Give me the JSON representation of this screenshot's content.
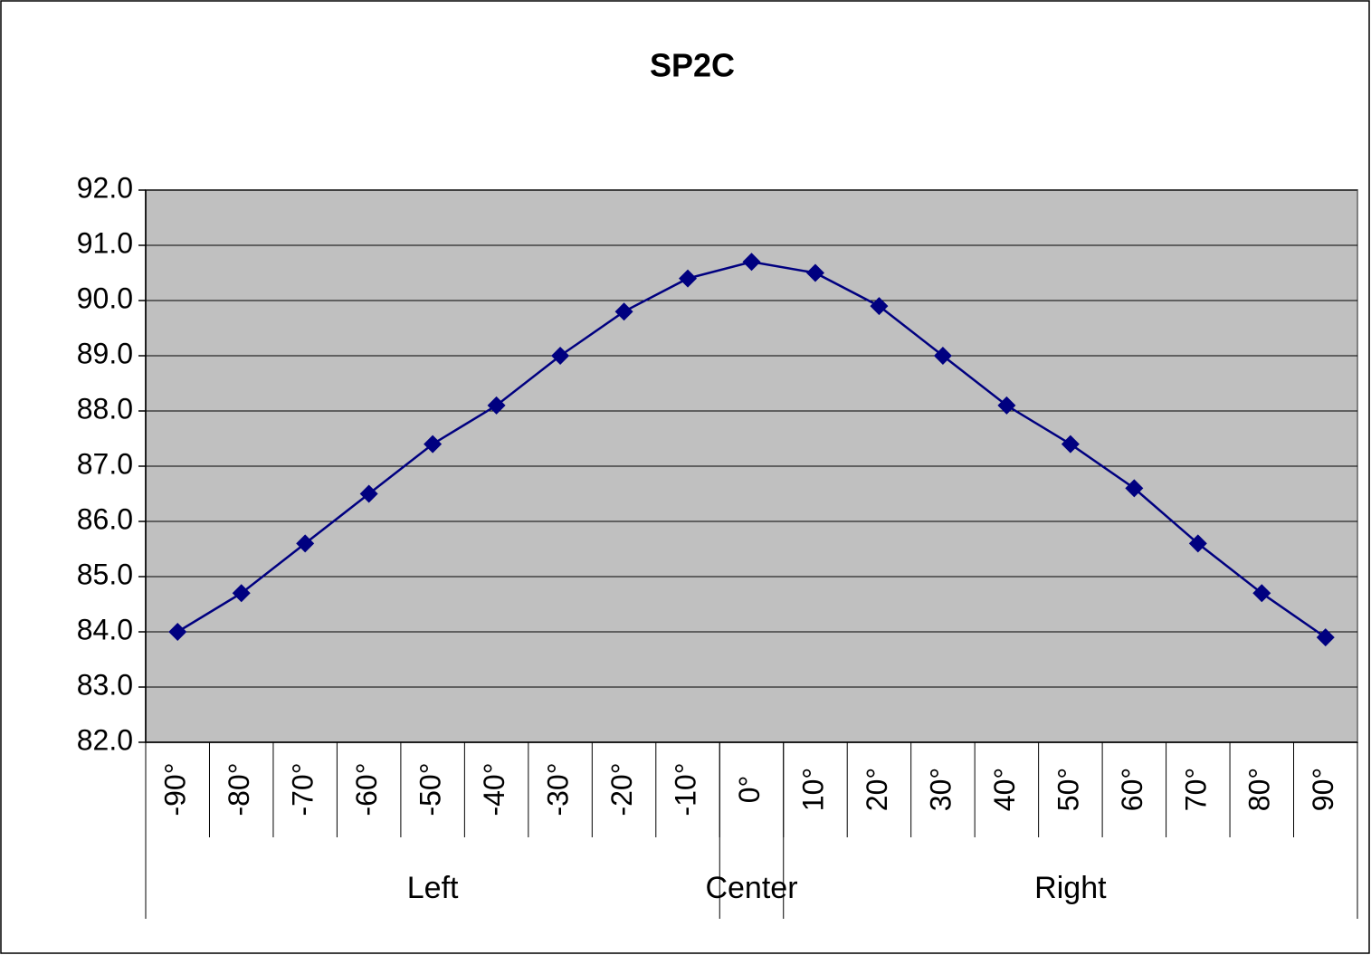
{
  "chart_data": {
    "type": "line",
    "title": "SP2C",
    "categories": [
      "-90°",
      "-80°",
      "-70°",
      "-60°",
      "-50°",
      "-40°",
      "-30°",
      "-20°",
      "-10°",
      "0°",
      "10°",
      "20°",
      "30°",
      "40°",
      "50°",
      "60°",
      "70°",
      "80°",
      "90°"
    ],
    "groups": [
      {
        "label": "Left",
        "span": 9
      },
      {
        "label": "Center",
        "span": 1
      },
      {
        "label": "Right",
        "span": 9
      }
    ],
    "series": [
      {
        "color": "#000080",
        "values": [
          84.0,
          84.7,
          85.6,
          86.5,
          87.4,
          88.1,
          89.0,
          89.8,
          90.4,
          90.7,
          90.5,
          89.9,
          89.0,
          88.1,
          87.4,
          86.6,
          85.6,
          84.7,
          83.9
        ]
      }
    ],
    "ylim": [
      82,
      92
    ],
    "yticks": [
      {
        "value": 82,
        "label": "82.0"
      },
      {
        "value": 83,
        "label": "83.0"
      },
      {
        "value": 84,
        "label": "84.0"
      },
      {
        "value": 85,
        "label": "85.0"
      },
      {
        "value": 86,
        "label": "86.0"
      },
      {
        "value": 87,
        "label": "87.0"
      },
      {
        "value": 88,
        "label": "88.0"
      },
      {
        "value": 89,
        "label": "89.0"
      },
      {
        "value": 90,
        "label": "90.0"
      },
      {
        "value": 91,
        "label": "91.0"
      },
      {
        "value": 92,
        "label": "92.0"
      }
    ],
    "grid": true,
    "plot_background": "#c0c0c0"
  }
}
